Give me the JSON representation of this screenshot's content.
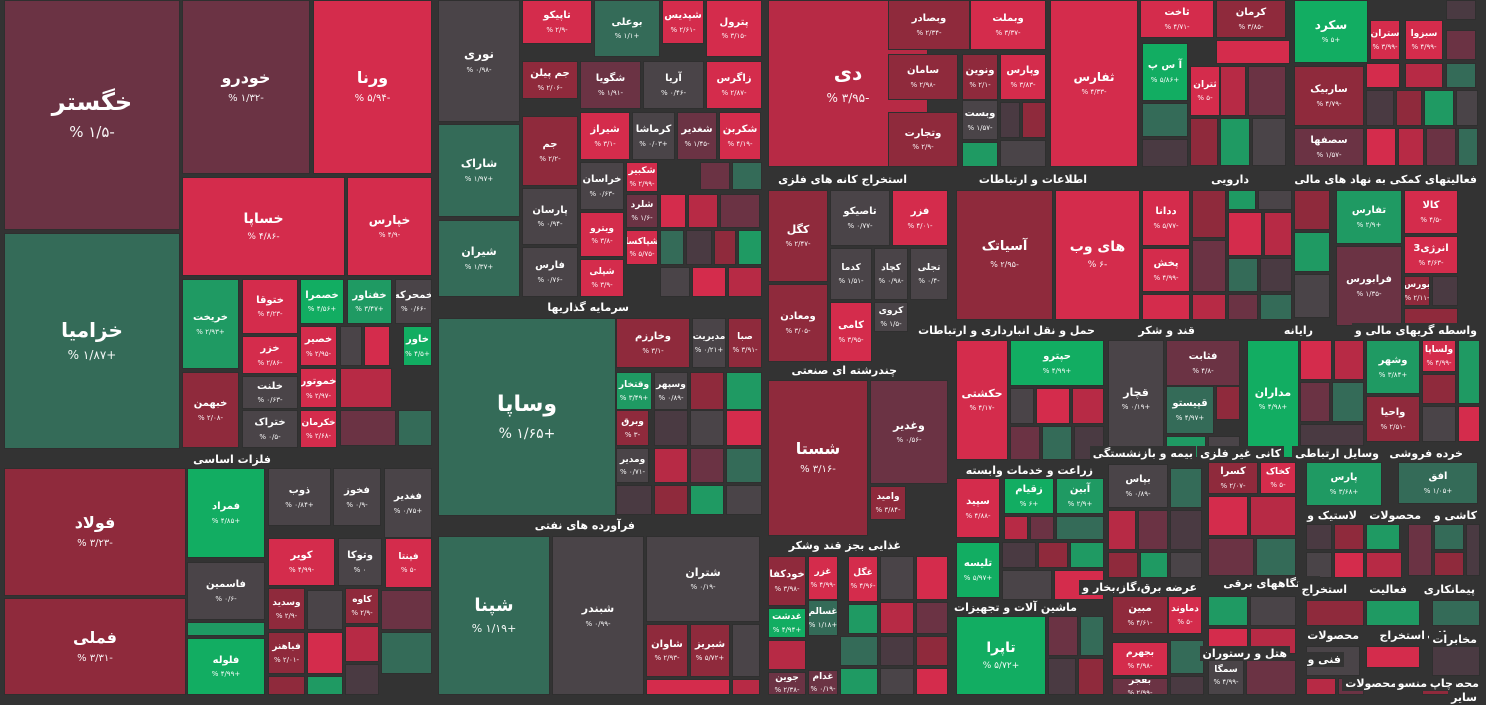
{
  "colors": {
    "red": "#d42c4c",
    "red2": "#b72a45",
    "darkred": "#8f2a3c",
    "maroon": "#6b3344",
    "grayred": "#4a3a42",
    "gray": "#4a4448",
    "darkgreen": "#346b58",
    "green": "#1f9a63",
    "brightgreen": "#12ad62"
  },
  "chart_data": {
    "type": "heatmap",
    "sectors": [
      {
        "name": "فلزات اساسی"
      },
      {
        "name": "سرمایه گذاریها"
      },
      {
        "name": "فرآورده های نفتی"
      },
      {
        "name": "استخراج کانه های فلزی"
      },
      {
        "name": "اطلاعات و ارتباطات"
      },
      {
        "name": "دارویی"
      },
      {
        "name": "فعالیتهای کمکی به نهاد های مالی"
      },
      {
        "name": "چندرشته ای صنعتی"
      },
      {
        "name": "حمل و نقل انبارداری و ارتباطات"
      },
      {
        "name": "قند و شکر"
      },
      {
        "name": "رایانه"
      },
      {
        "name": "واسطه گریهای مالی و"
      },
      {
        "name": "زراعت و خدمات وابسته"
      },
      {
        "name": "بیمه و بازنشستگی"
      },
      {
        "name": "کانی غیر فلزی"
      },
      {
        "name": "وسایل ارتباطی"
      },
      {
        "name": "خرده فروشی"
      },
      {
        "name": "غذایی بجز قند وشکر"
      },
      {
        "name": "ماشین آلات و تجهیزات"
      },
      {
        "name": "عرضه برق،گاز،بخار و"
      },
      {
        "name": "دستگاههای برقی"
      },
      {
        "name": "لاستیک و"
      },
      {
        "name": "محصولات"
      },
      {
        "name": "کاشی و"
      },
      {
        "name": "استخراج"
      },
      {
        "name": "فعالیت"
      },
      {
        "name": "پیمانکاری"
      },
      {
        "name": "هتل و رستوران"
      },
      {
        "name": "محصولات"
      },
      {
        "name": "استخراج"
      },
      {
        "name": "محصولات"
      },
      {
        "name": "مخابرات"
      },
      {
        "name": "فنی و"
      },
      {
        "name": "محصولات"
      },
      {
        "name": "منسو"
      },
      {
        "name": "محصوا"
      },
      {
        "name": "چاپ"
      },
      {
        "name": "سایر"
      }
    ],
    "tiles": [
      {
        "symbol": "خگستر",
        "change": "-۱/۵ %",
        "value": -1.5,
        "color": "maroon"
      },
      {
        "symbol": "خزامیا",
        "change": "+۱/۸۷ %",
        "value": 1.87,
        "color": "darkgreen"
      },
      {
        "symbol": "خودرو",
        "change": "-۱/۳۲ %",
        "value": -1.32,
        "color": "maroon"
      },
      {
        "symbol": "ورنا",
        "change": "-۵/۹۴ %",
        "value": -5.94,
        "color": "red"
      },
      {
        "symbol": "خساپا",
        "change": "-۴/۸۶ %",
        "value": -4.86,
        "color": "red"
      },
      {
        "symbol": "خپارس",
        "change": "-۴/۹ %",
        "value": -4.9,
        "color": "red"
      },
      {
        "symbol": "خریخت",
        "change": "+۲/۹۳ %",
        "value": 2.93,
        "color": "green"
      },
      {
        "symbol": "ختوقا",
        "change": "-۴/۲۳ %",
        "value": -4.23,
        "color": "red"
      },
      {
        "symbol": "خمحرکه",
        "change": "-۰/۶۶ %",
        "value": -0.66,
        "color": "gray"
      },
      {
        "symbol": "خزر",
        "change": "-۲/۸۶ %",
        "value": -2.86,
        "color": "red"
      },
      {
        "symbol": "خصمرا",
        "change": "+۴/۵۶ %",
        "value": 4.56,
        "color": "brightgreen"
      },
      {
        "symbol": "خفناور",
        "change": "+۳/۴۷ %",
        "value": 3.47,
        "color": "green"
      },
      {
        "symbol": "خصیر",
        "change": "-۲/۹۵ %",
        "value": -2.95,
        "color": "red"
      },
      {
        "symbol": "خموتور",
        "change": "-۲/۹۷ %",
        "value": -2.97,
        "color": "red"
      },
      {
        "symbol": "خبهمن",
        "change": "-۲/۰۸ %",
        "value": -2.08,
        "color": "darkred"
      },
      {
        "symbol": "خاور",
        "change": "+۴/۵ %",
        "value": 4.5,
        "color": "brightgreen"
      },
      {
        "symbol": "خلنت",
        "change": "-۰/۶۳ %",
        "value": -0.63,
        "color": "gray"
      },
      {
        "symbol": "ختور",
        "change": "-۲/۸۵ %",
        "value": -2.85,
        "color": "red"
      },
      {
        "symbol": "ختراک",
        "change": "-۰/۵ %",
        "value": -0.5,
        "color": "gray"
      },
      {
        "symbol": "خکرمان",
        "change": "-۲/۶۸ %",
        "value": -2.68,
        "color": "red"
      },
      {
        "symbol": "نوری",
        "change": "-۰/۹۸ %",
        "value": -0.98,
        "color": "gray"
      },
      {
        "symbol": "شاراک",
        "change": "+۱/۹۷ %",
        "value": 1.97,
        "color": "darkgreen"
      },
      {
        "symbol": "شیران",
        "change": "+۱/۳۷ %",
        "value": 1.37,
        "color": "darkgreen"
      },
      {
        "symbol": "تاپیکو",
        "change": "-۲/۹ %",
        "value": -2.9,
        "color": "red"
      },
      {
        "symbol": "بوعلی",
        "change": "+۱/۱ %",
        "value": 1.1,
        "color": "darkgreen"
      },
      {
        "symbol": "شپدیس",
        "change": "-۲/۶۱ %",
        "value": -2.61,
        "color": "red"
      },
      {
        "symbol": "پترول",
        "change": "-۳/۱۵ %",
        "value": -3.15,
        "color": "red"
      },
      {
        "symbol": "جم پیلن",
        "change": "-۲/۰۶ %",
        "value": -2.06,
        "color": "darkred"
      },
      {
        "symbol": "شگویا",
        "change": "-۱/۹۱ %",
        "value": -1.91,
        "color": "maroon"
      },
      {
        "symbol": "آریا",
        "change": "-۰/۴۶ %",
        "value": -0.46,
        "color": "gray"
      },
      {
        "symbol": "زاگرس",
        "change": "-۲/۸۷ %",
        "value": -2.87,
        "color": "red"
      },
      {
        "symbol": "جم",
        "change": "-۲/۲ %",
        "value": -2.2,
        "color": "darkred"
      },
      {
        "symbol": "شیراز",
        "change": "-۳/۱ %",
        "value": -3.1,
        "color": "red"
      },
      {
        "symbol": "کرماشا",
        "change": "+۰/۰۳ %",
        "value": 0.03,
        "color": "gray"
      },
      {
        "symbol": "شغدیر",
        "change": "-۱/۴۵ %",
        "value": -1.45,
        "color": "maroon"
      },
      {
        "symbol": "شکربن",
        "change": "-۴/۱۹ %",
        "value": -4.19,
        "color": "red"
      },
      {
        "symbol": "پارسان",
        "change": "-۰/۹۴ %",
        "value": -0.94,
        "color": "gray"
      },
      {
        "symbol": "خراسان",
        "change": "-۰/۶۳ %",
        "value": -0.63,
        "color": "gray"
      },
      {
        "symbol": "شکبیر",
        "change": "-۲/۹۹ %",
        "value": -2.99,
        "color": "red"
      },
      {
        "symbol": "شلرد",
        "change": "-۱/۶ %",
        "value": -1.6,
        "color": "maroon"
      },
      {
        "symbol": "فارس",
        "change": "-۰/۷۶ %",
        "value": -0.76,
        "color": "gray"
      },
      {
        "symbol": "ویترو",
        "change": "-۳/۸ %",
        "value": -3.8,
        "color": "red"
      },
      {
        "symbol": "شپاکسا",
        "change": "-۵/۷۵ %",
        "value": -5.75,
        "color": "red"
      },
      {
        "symbol": "شپلی",
        "change": "-۳/۹ %",
        "value": -3.9,
        "color": "red"
      },
      {
        "symbol": "دی",
        "change": "-۳/۹۵ %",
        "value": -3.95,
        "color": "red2"
      },
      {
        "symbol": "وبصادر",
        "change": "-۲/۳۴ %",
        "value": -2.34,
        "color": "darkred"
      },
      {
        "symbol": "وبملت",
        "change": "-۳/۳۷ %",
        "value": -3.37,
        "color": "red"
      },
      {
        "symbol": "سامان",
        "change": "-۲/۹۸ %",
        "value": -2.98,
        "color": "darkred"
      },
      {
        "symbol": "ونوین",
        "change": "-۲/۱ %",
        "value": -2.1,
        "color": "darkred"
      },
      {
        "symbol": "وپارس",
        "change": "-۳/۸۳ %",
        "value": -3.83,
        "color": "red"
      },
      {
        "symbol": "ثفارس",
        "change": "-۴/۳۳ %",
        "value": -4.33,
        "color": "red"
      },
      {
        "symbol": "ثاخت",
        "change": "-۴/۷۱ %",
        "value": -4.71,
        "color": "red"
      },
      {
        "symbol": "کرمان",
        "change": "-۳/۸۵ %",
        "value": -3.85,
        "color": "darkred"
      },
      {
        "symbol": "سکرد",
        "change": "+۵ %",
        "value": 5,
        "color": "brightgreen"
      },
      {
        "symbol": "وبست",
        "change": "-۱/۵۷ %",
        "value": -1.57,
        "color": "gray"
      },
      {
        "symbol": "وتجارت",
        "change": "-۲/۹ %",
        "value": -2.9,
        "color": "darkred"
      },
      {
        "symbol": "آ س پ",
        "change": "+۵/۸۶ %",
        "value": 5.86,
        "color": "brightgreen"
      },
      {
        "symbol": "ثتران",
        "change": "-۵ %",
        "value": -5,
        "color": "red"
      },
      {
        "symbol": "ستران",
        "change": "-۳/۹۹ %",
        "value": -3.99,
        "color": "red"
      },
      {
        "symbol": "سبزوا",
        "change": "-۴/۹۹ %",
        "value": -4.99,
        "color": "red"
      },
      {
        "symbol": "ساربیک",
        "change": "-۴/۷۹ %",
        "value": -4.79,
        "color": "darkred"
      },
      {
        "symbol": "سصفها",
        "change": "-۱/۵۷ %",
        "value": -1.57,
        "color": "maroon"
      },
      {
        "symbol": "فولاد",
        "change": "-۳/۲۳ %",
        "value": -3.23,
        "color": "darkred"
      },
      {
        "symbol": "فملی",
        "change": "-۳/۳۱ %",
        "value": -3.31,
        "color": "darkred"
      },
      {
        "symbol": "فمراد",
        "change": "+۴/۸۵ %",
        "value": 4.85,
        "color": "brightgreen"
      },
      {
        "symbol": "ذوب",
        "change": "+۰/۸۴ %",
        "value": 0.84,
        "color": "gray"
      },
      {
        "symbol": "فخوز",
        "change": "-۰/۹ %",
        "value": -0.9,
        "color": "gray"
      },
      {
        "symbol": "فغدیر",
        "change": "+۰/۷۵ %",
        "value": 0.75,
        "color": "gray"
      },
      {
        "symbol": "فاسمین",
        "change": "-۰/۶ %",
        "value": -0.6,
        "color": "gray"
      },
      {
        "symbol": "کویر",
        "change": "-۴/۹۹ %",
        "value": -4.99,
        "color": "red"
      },
      {
        "symbol": "وتوکا",
        "change": "۰ %",
        "value": 0,
        "color": "gray"
      },
      {
        "symbol": "فپنتا",
        "change": "-۵ %",
        "value": -5,
        "color": "red"
      },
      {
        "symbol": "کاوه",
        "change": "-۲/۹ %",
        "value": -2.9,
        "color": "darkred"
      },
      {
        "symbol": "وسدید",
        "change": "-۲/۹ %",
        "value": -2.9,
        "color": "darkred"
      },
      {
        "symbol": "فباهنر",
        "change": "-۲/۰۱ %",
        "value": -2.01,
        "color": "darkred"
      },
      {
        "symbol": "فلوله",
        "change": "+۴/۹۹ %",
        "value": 4.99,
        "color": "brightgreen"
      },
      {
        "symbol": "وساپا",
        "change": "+۱/۶۵ %",
        "value": 1.65,
        "color": "darkgreen"
      },
      {
        "symbol": "وخارزم",
        "change": "-۳/۱ %",
        "value": -3.1,
        "color": "darkred"
      },
      {
        "symbol": "مدیریت",
        "change": "+۰/۲۱ %",
        "value": 0.21,
        "color": "gray"
      },
      {
        "symbol": "صبا",
        "change": "-۳/۹۱ %",
        "value": -3.91,
        "color": "darkred"
      },
      {
        "symbol": "وقتخار",
        "change": "+۳/۴۹ %",
        "value": 3.49,
        "color": "green"
      },
      {
        "symbol": "وسپهر",
        "change": "-۰/۸۹ %",
        "value": -0.89,
        "color": "gray"
      },
      {
        "symbol": "وبرق",
        "change": "-۳ %",
        "value": -3,
        "color": "darkred"
      },
      {
        "symbol": "ومدیر",
        "change": "-۰/۷۱ %",
        "value": -0.71,
        "color": "gray"
      },
      {
        "symbol": "شپنا",
        "change": "+۱/۱۹ %",
        "value": 1.19,
        "color": "darkgreen"
      },
      {
        "symbol": "شبندر",
        "change": "-۰/۹۹ %",
        "value": -0.99,
        "color": "gray"
      },
      {
        "symbol": "شتران",
        "change": "-۰/۱۹ %",
        "value": -0.19,
        "color": "gray"
      },
      {
        "symbol": "شاوان",
        "change": "-۲/۹۳ %",
        "value": -2.93,
        "color": "darkred"
      },
      {
        "symbol": "شبریز",
        "change": "+۵/۷۲ %",
        "value": 5.72,
        "color": "darkred"
      },
      {
        "symbol": "کگل",
        "change": "-۲/۴۷ %",
        "value": -2.47,
        "color": "darkred"
      },
      {
        "symbol": "تاصیکو",
        "change": "-۰/۷۷ %",
        "value": -0.77,
        "color": "gray"
      },
      {
        "symbol": "فزر",
        "change": "-۴/۰۱ %",
        "value": -4.01,
        "color": "red"
      },
      {
        "symbol": "کدما",
        "change": "-۱/۵۱ %",
        "value": -1.51,
        "color": "gray"
      },
      {
        "symbol": "کچاد",
        "change": "-۰/۹۸ %",
        "value": -0.98,
        "color": "gray"
      },
      {
        "symbol": "تجلی",
        "change": "-۰/۴ %",
        "value": -0.4,
        "color": "gray"
      },
      {
        "symbol": "ومعادن",
        "change": "-۳/۰۵ %",
        "value": -3.05,
        "color": "darkred"
      },
      {
        "symbol": "کامی",
        "change": "-۳/۹۵ %",
        "value": -3.95,
        "color": "red"
      },
      {
        "symbol": "کروی",
        "change": "-۱/۵ %",
        "value": -1.5,
        "color": "gray"
      },
      {
        "symbol": "آسیاتک",
        "change": "-۲/۹۵ %",
        "value": -2.95,
        "color": "darkred"
      },
      {
        "symbol": "های وب",
        "change": "-۶ %",
        "value": -6,
        "color": "red"
      },
      {
        "symbol": "ددانا",
        "change": "-۵/۷۷ %",
        "value": -5.77,
        "color": "red"
      },
      {
        "symbol": "پخش",
        "change": "-۴/۹۹ %",
        "value": -4.99,
        "color": "red"
      },
      {
        "symbol": "تفارس",
        "change": "+۲/۹ %",
        "value": 2.9,
        "color": "green"
      },
      {
        "symbol": "کالا",
        "change": "-۴/۵ %",
        "value": -4.5,
        "color": "red"
      },
      {
        "symbol": "انرژی3",
        "change": "-۴/۶۳ %",
        "value": -4.63,
        "color": "red"
      },
      {
        "symbol": "فرابورس",
        "change": "-۱/۳۵ %",
        "value": -1.35,
        "color": "maroon"
      },
      {
        "symbol": "بورس",
        "change": "-۲/۱۱ %",
        "value": -2.11,
        "color": "darkred"
      },
      {
        "symbol": "شستا",
        "change": "-۳/۱۶ %",
        "value": -3.16,
        "color": "darkred"
      },
      {
        "symbol": "وغدیر",
        "change": "-۰/۵۶ %",
        "value": -0.56,
        "color": "maroon"
      },
      {
        "symbol": "وامید",
        "change": "-۳/۸۴ %",
        "value": -3.84,
        "color": "darkred"
      },
      {
        "symbol": "حکشتی",
        "change": "-۴/۱۷ %",
        "value": -4.17,
        "color": "red"
      },
      {
        "symbol": "حپترو",
        "change": "+۴/۹۹ %",
        "value": 4.99,
        "color": "brightgreen"
      },
      {
        "symbol": "قچار",
        "change": "+۰/۱۹ %",
        "value": 0.19,
        "color": "gray"
      },
      {
        "symbol": "فثابت",
        "change": "-۴/۸ %",
        "value": -4.8,
        "color": "maroon"
      },
      {
        "symbol": "قپیستو",
        "change": "+۴/۹۷ %",
        "value": 4.97,
        "color": "darkgreen"
      },
      {
        "symbol": "مداران",
        "change": "+۴/۹۸ %",
        "value": 4.98,
        "color": "brightgreen"
      },
      {
        "symbol": "وشهر",
        "change": "+۳/۸۴ %",
        "value": 3.84,
        "color": "green"
      },
      {
        "symbol": "ولساپا",
        "change": "-۴/۹۹ %",
        "value": -4.99,
        "color": "red"
      },
      {
        "symbol": "واحیا",
        "change": "-۲/۵۱ %",
        "value": -2.51,
        "color": "darkred"
      },
      {
        "symbol": "سپید",
        "change": "-۴/۸۸ %",
        "value": -4.88,
        "color": "red"
      },
      {
        "symbol": "زقیام",
        "change": "+۶ %",
        "value": 6,
        "color": "brightgreen"
      },
      {
        "symbol": "آبین",
        "change": "+۲/۹ %",
        "value": 2.9,
        "color": "green"
      },
      {
        "symbol": "تلیسه",
        "change": "+۵/۹۷ %",
        "value": 5.97,
        "color": "brightgreen"
      },
      {
        "symbol": "بپاس",
        "change": "-۰/۸۹ %",
        "value": -0.89,
        "color": "gray"
      },
      {
        "symbol": "کسرا",
        "change": "-۲/۰۷ %",
        "value": -2.07,
        "color": "darkred"
      },
      {
        "symbol": "کخاک",
        "change": "-۵ %",
        "value": -5,
        "color": "red"
      },
      {
        "symbol": "پارس",
        "change": "+۳/۶۸ %",
        "value": 3.68,
        "color": "green"
      },
      {
        "symbol": "افق",
        "change": "+۱/۰۵ %",
        "value": 1.05,
        "color": "darkgreen"
      },
      {
        "symbol": "خودکفا",
        "change": "-۳/۹۸ %",
        "value": -3.98,
        "color": "darkred"
      },
      {
        "symbol": "غزر",
        "change": "-۴/۹۹ %",
        "value": -4.99,
        "color": "red"
      },
      {
        "symbol": "غگل",
        "change": "-۴/۹۶ %",
        "value": -4.96,
        "color": "red"
      },
      {
        "symbol": "غدشت",
        "change": "+۴/۹۴ %",
        "value": 4.94,
        "color": "brightgreen"
      },
      {
        "symbol": "غسالم",
        "change": "+۱/۱۸ %",
        "value": 1.18,
        "color": "darkgreen"
      },
      {
        "symbol": "غدام",
        "change": "-۰/۱۹ %",
        "value": -0.19,
        "color": "maroon"
      },
      {
        "symbol": "جوین",
        "change": "-۲/۳۸ %",
        "value": -2.38,
        "color": "maroon"
      },
      {
        "symbol": "تاپرا",
        "change": "+۵/۷۲ %",
        "value": 5.72,
        "color": "brightgreen"
      },
      {
        "symbol": "مبین",
        "change": "-۴/۶۱ %",
        "value": -4.61,
        "color": "darkred"
      },
      {
        "symbol": "دماوند",
        "change": "-۵ %",
        "value": -5,
        "color": "red"
      },
      {
        "symbol": "بجهرم",
        "change": "-۴/۹۸ %",
        "value": -4.98,
        "color": "red"
      },
      {
        "symbol": "بفجر",
        "change": "-۲/۹۹ %",
        "value": -2.99,
        "color": "maroon"
      },
      {
        "symbol": "سمگا",
        "change": "-۴/۹۹ %",
        "value": -4.99,
        "color": "gray"
      }
    ]
  }
}
